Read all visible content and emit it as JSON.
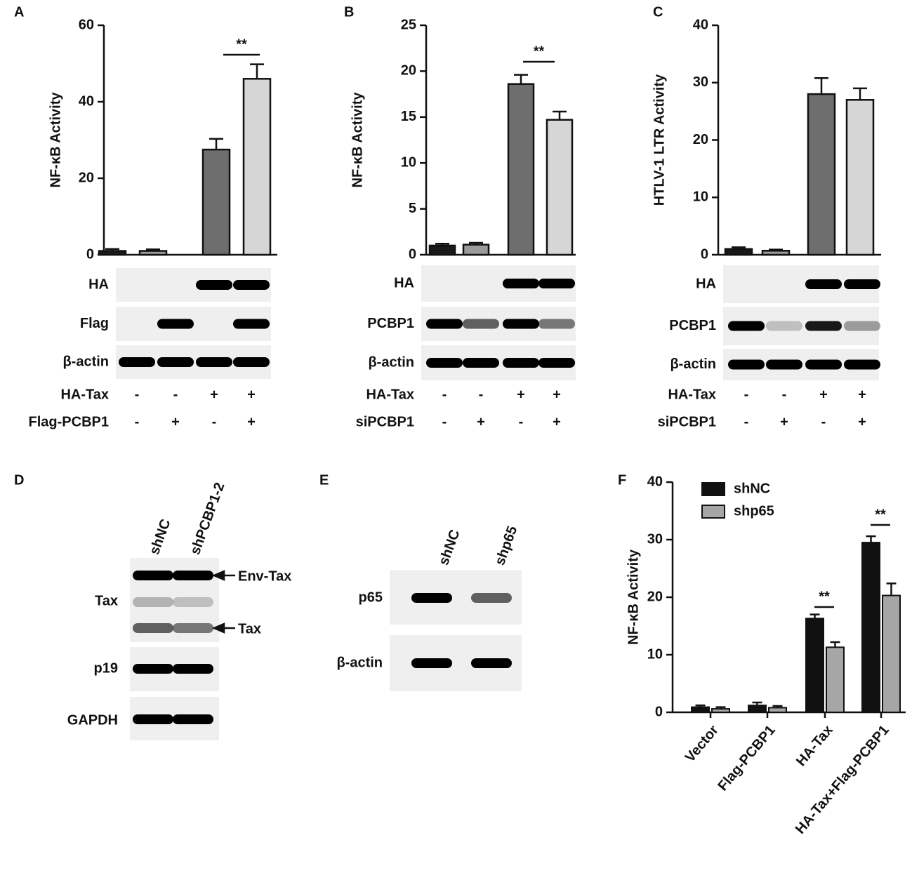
{
  "chart_data": [
    {
      "type": "bar",
      "panel": "A",
      "ylabel": "NF-κB Activity",
      "values": [
        1.0,
        1.0,
        27.5,
        46.0
      ],
      "errors": [
        0.5,
        0.4,
        2.8,
        3.8
      ],
      "colors": [
        "#1a1a1a",
        "#9a9a9a",
        "#6e6e6e",
        "#d6d6d6"
      ],
      "ylim": [
        0,
        60
      ],
      "yticks": [
        0,
        20,
        40,
        60
      ],
      "annotations": [
        "**"
      ],
      "blot": {
        "rows": [
          "HA",
          "Flag",
          "β-actin"
        ],
        "conditions": [
          {
            "label": "HA-Tax",
            "signs": [
              "-",
              "-",
              "+",
              "+"
            ]
          },
          {
            "label": "Flag-PCBP1",
            "signs": [
              "-",
              "+",
              "-",
              "+"
            ]
          }
        ]
      }
    },
    {
      "type": "bar",
      "panel": "B",
      "ylabel": "NF-κB Activity",
      "values": [
        1.0,
        1.1,
        18.6,
        14.7
      ],
      "errors": [
        0.2,
        0.2,
        1.0,
        0.9
      ],
      "colors": [
        "#1a1a1a",
        "#9a9a9a",
        "#6e6e6e",
        "#d6d6d6"
      ],
      "ylim": [
        0,
        25
      ],
      "yticks": [
        0,
        5,
        10,
        15,
        20,
        25
      ],
      "annotations": [
        "**"
      ],
      "blot": {
        "rows": [
          "HA",
          "PCBP1",
          "β-actin"
        ],
        "conditions": [
          {
            "label": "HA-Tax",
            "signs": [
              "-",
              "-",
              "+",
              "+"
            ]
          },
          {
            "label": "siPCBP1",
            "signs": [
              "-",
              "+",
              "-",
              "+"
            ]
          }
        ]
      }
    },
    {
      "type": "bar",
      "panel": "C",
      "ylabel": "HTLV-1 LTR Activity",
      "values": [
        1.0,
        0.7,
        28.0,
        27.0
      ],
      "errors": [
        0.3,
        0.2,
        2.8,
        2.0
      ],
      "colors": [
        "#1a1a1a",
        "#9a9a9a",
        "#6e6e6e",
        "#d6d6d6"
      ],
      "ylim": [
        0,
        40
      ],
      "yticks": [
        0,
        10,
        20,
        30,
        40
      ],
      "annotations": [],
      "blot": {
        "rows": [
          "HA",
          "PCBP1",
          "β-actin"
        ],
        "conditions": [
          {
            "label": "HA-Tax",
            "signs": [
              "-",
              "-",
              "+",
              "+"
            ]
          },
          {
            "label": "siPCBP1",
            "signs": [
              "-",
              "+",
              "-",
              "+"
            ]
          }
        ]
      }
    },
    {
      "type": "grouped_bar",
      "panel": "F",
      "ylabel": "NF-κB Activity",
      "categories": [
        "Vector",
        "Flag-PCBP1",
        "HA-Tax",
        "HA-Tax+Flag-PCBP1"
      ],
      "series": [
        {
          "name": "shNC",
          "color": "#111111",
          "values": [
            0.9,
            1.2,
            16.3,
            29.5
          ],
          "errors": [
            0.3,
            0.5,
            0.7,
            1.1
          ]
        },
        {
          "name": "shp65",
          "color": "#a6a6a6",
          "values": [
            0.6,
            0.8,
            11.3,
            20.3
          ],
          "errors": [
            0.3,
            0.3,
            0.9,
            2.1
          ]
        }
      ],
      "ylim": [
        0,
        40
      ],
      "yticks": [
        0,
        10,
        20,
        30,
        40
      ],
      "annotations": [
        "**",
        "**"
      ]
    }
  ],
  "panels": [
    {
      "panel": "D",
      "lanes": [
        "shNC",
        "shPCBP1-2"
      ],
      "rows": [
        "Tax",
        "p19",
        "GAPDH"
      ],
      "arrows": [
        "Env-Tax",
        "Tax"
      ]
    },
    {
      "panel": "E",
      "lanes": [
        "shNC",
        "shp65"
      ],
      "rows": [
        "p65",
        "β-actin"
      ],
      "arrows": []
    }
  ]
}
